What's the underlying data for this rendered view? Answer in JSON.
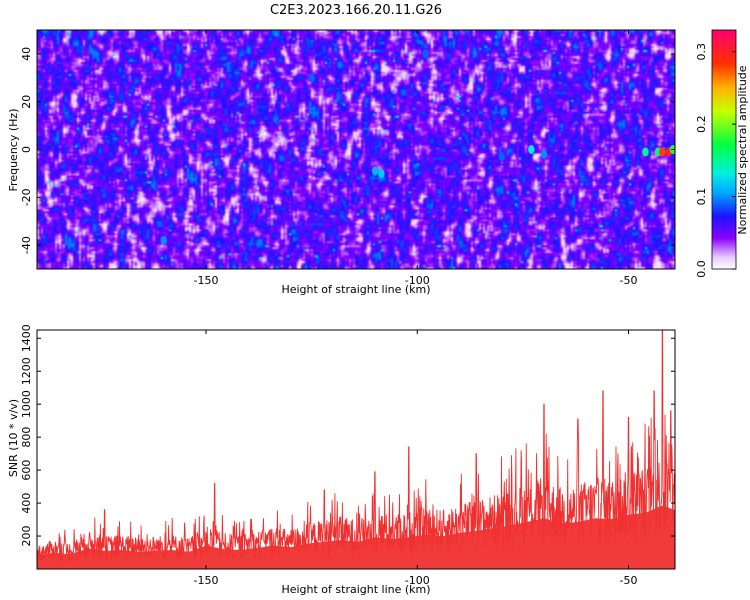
{
  "title": "C2E3.2023.166.20.11.G26",
  "chart_data": [
    {
      "type": "heatmap",
      "xlabel": "Height of straight line (km)",
      "ylabel": "Frequency (Hz)",
      "xlim": [
        -190,
        -39
      ],
      "ylim": [
        -50,
        50
      ],
      "x_ticks": [
        -150,
        -100,
        -50
      ],
      "x_tick_labels": [
        "-150",
        "-100",
        "-50"
      ],
      "y_ticks": [
        -40,
        -20,
        0,
        20,
        40
      ],
      "y_tick_labels": [
        "-40",
        "-20",
        "0",
        "20",
        "40"
      ],
      "colorbar": {
        "label": "Normalized spectral amplitude",
        "range": [
          0,
          0.33
        ],
        "ticks": [
          0,
          0.1,
          0.2,
          0.3
        ],
        "tick_labels": [
          "0.0",
          "0.1",
          "0.2",
          "0.3"
        ],
        "colormap": "rainbow (white-violet-blue-cyan-green-yellow-red)"
      },
      "background_level": 0.02,
      "blobs": [
        {
          "x": -108.5,
          "y": -10,
          "v": 0.12
        },
        {
          "x": -110,
          "y": -9,
          "v": 0.11
        },
        {
          "x": -80,
          "y": -3,
          "v": 0.09
        },
        {
          "x": -73,
          "y": 0,
          "v": 0.13
        },
        {
          "x": -70,
          "y": -2,
          "v": 0.1
        },
        {
          "x": -46,
          "y": -1,
          "v": 0.15
        },
        {
          "x": -43,
          "y": -1,
          "v": 0.16
        },
        {
          "x": -42,
          "y": -1,
          "v": 0.28
        },
        {
          "x": -40.5,
          "y": -1,
          "v": 0.3
        },
        {
          "x": -39.5,
          "y": 0,
          "v": 0.18
        },
        {
          "x": -180,
          "y": 42,
          "v": 0.08
        },
        {
          "x": -170,
          "y": 22,
          "v": 0.08
        },
        {
          "x": -125,
          "y": 30,
          "v": 0.09
        },
        {
          "x": -160,
          "y": -38,
          "v": 0.1
        },
        {
          "x": -98,
          "y": 40,
          "v": 0.09
        }
      ]
    },
    {
      "type": "line",
      "xlabel": "Height of straight line (km)",
      "ylabel": "SNR (10 * v/v)",
      "xlim": [
        -190,
        -39
      ],
      "ylim": [
        0,
        1450
      ],
      "x_ticks": [
        -150,
        -100,
        -50
      ],
      "x_tick_labels": [
        "-150",
        "-100",
        "-50"
      ],
      "y_ticks": [
        200,
        400,
        600,
        800,
        1000,
        1200,
        1400
      ],
      "y_tick_labels": [
        "200",
        "400",
        "600",
        "800",
        "1000",
        "1200",
        "1400"
      ],
      "color": "#f03030",
      "series": [
        {
          "x": [
            -190,
            -186,
            -182,
            -178,
            -174,
            -170,
            -166,
            -162,
            -158,
            -154,
            -150,
            -146,
            -142,
            -138,
            -134,
            -130,
            -126,
            -122,
            -118,
            -114,
            -110,
            -106,
            -102,
            -98,
            -94,
            -90,
            -86,
            -82,
            -78,
            -74,
            -70,
            -66,
            -62,
            -58,
            -54,
            -50,
            -46,
            -42,
            -39
          ],
          "y": [
            140,
            180,
            160,
            230,
            200,
            210,
            190,
            200,
            210,
            190,
            260,
            220,
            210,
            230,
            260,
            240,
            280,
            300,
            320,
            300,
            350,
            330,
            350,
            380,
            360,
            400,
            420,
            450,
            480,
            520,
            560,
            500,
            520,
            560,
            550,
            600,
            620,
            700,
            650
          ],
          "peaks": [
            {
              "x": -174,
              "y": 360
            },
            {
              "x": -148,
              "y": 520
            },
            {
              "x": -122,
              "y": 480
            },
            {
              "x": -110,
              "y": 590
            },
            {
              "x": -102,
              "y": 740
            },
            {
              "x": -86,
              "y": 700
            },
            {
              "x": -70,
              "y": 1000
            },
            {
              "x": -62,
              "y": 910
            },
            {
              "x": -56,
              "y": 1080
            },
            {
              "x": -50,
              "y": 920
            },
            {
              "x": -44,
              "y": 1080
            },
            {
              "x": -42,
              "y": 1450
            },
            {
              "x": -40,
              "y": 960
            }
          ]
        }
      ]
    }
  ]
}
